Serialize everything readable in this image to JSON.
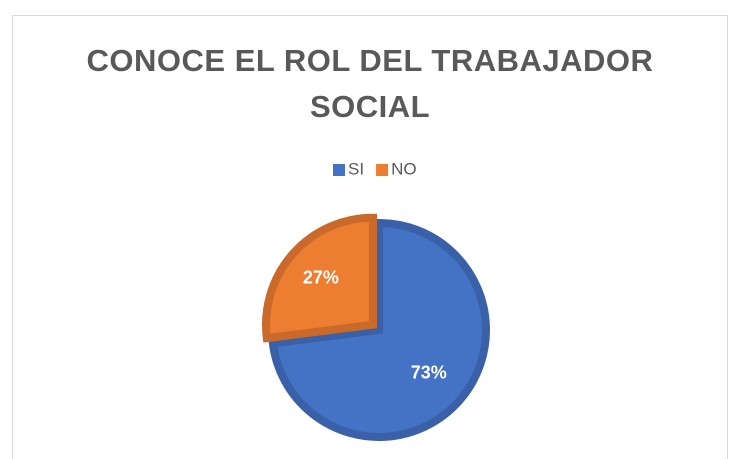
{
  "chart_data": {
    "type": "pie",
    "title": "CONOCE EL ROL DEL TRABAJADOR SOCIAL",
    "categories": [
      "SI",
      "NO"
    ],
    "values": [
      73,
      27
    ],
    "value_labels": [
      "73%",
      "27%"
    ],
    "colors": [
      "#4472c4",
      "#ed7d31"
    ],
    "legend": "top"
  }
}
